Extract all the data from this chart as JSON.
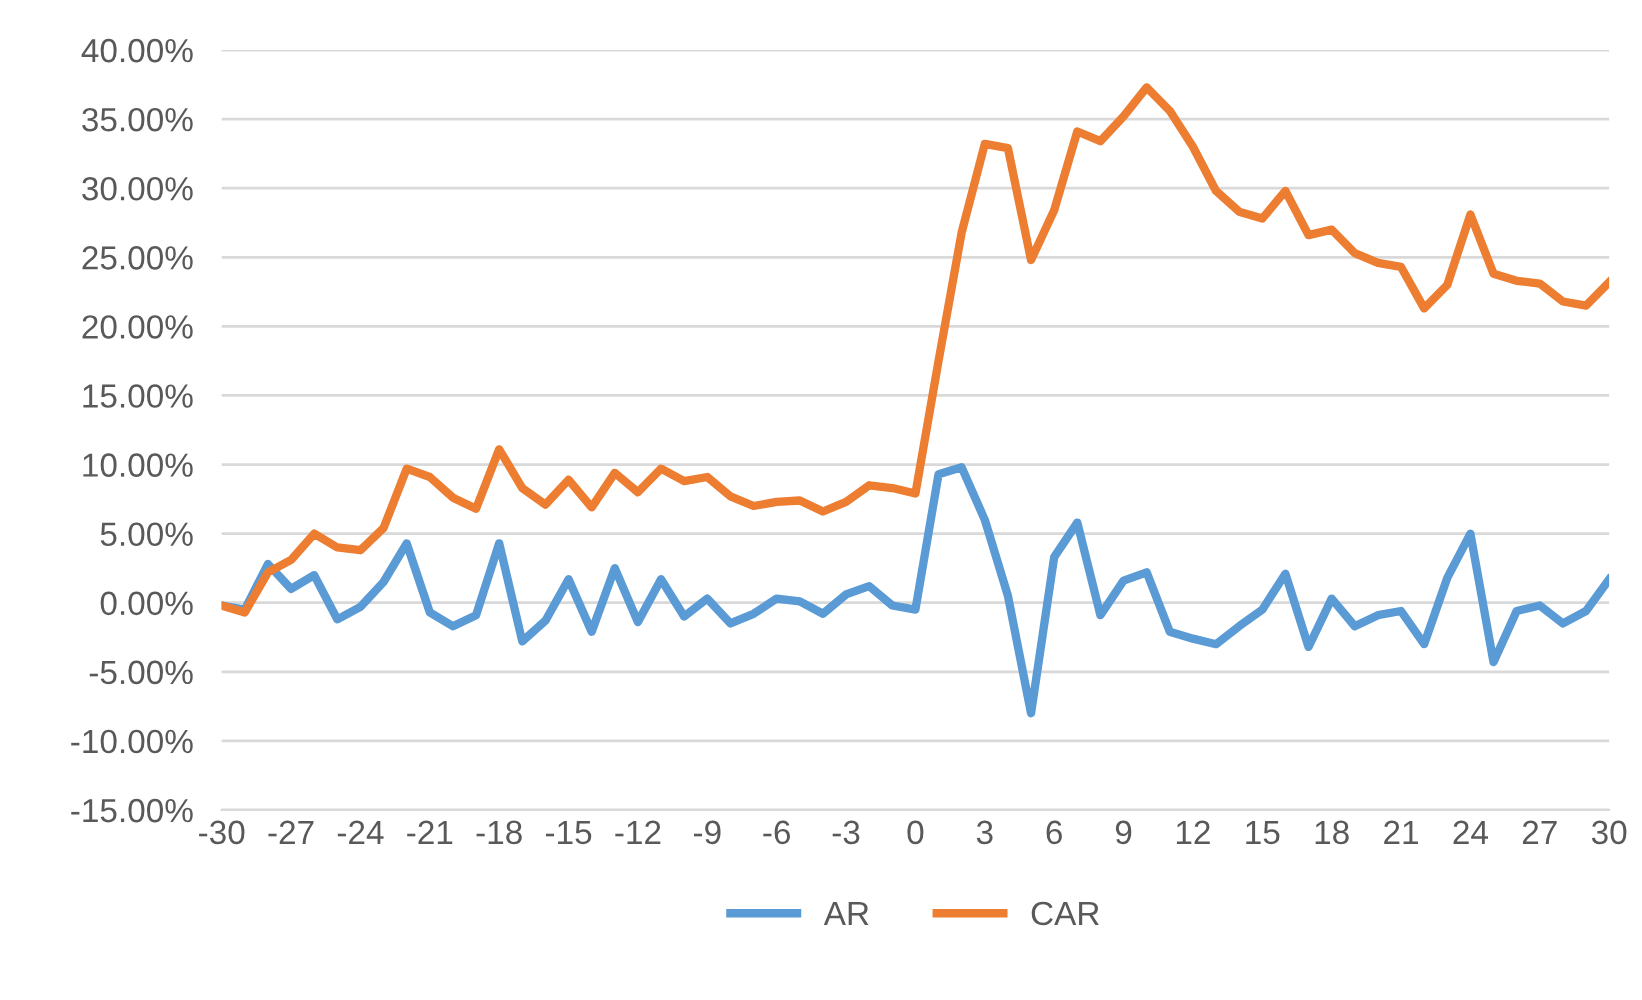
{
  "chart_data": {
    "type": "line",
    "x": [
      -30,
      -29,
      -28,
      -27,
      -26,
      -25,
      -24,
      -23,
      -22,
      -21,
      -20,
      -19,
      -18,
      -17,
      -16,
      -15,
      -14,
      -13,
      -12,
      -11,
      -10,
      -9,
      -8,
      -7,
      -6,
      -5,
      -4,
      -3,
      -2,
      -1,
      0,
      1,
      2,
      3,
      4,
      5,
      6,
      7,
      8,
      9,
      10,
      11,
      12,
      13,
      14,
      15,
      16,
      17,
      18,
      19,
      20,
      21,
      22,
      23,
      24,
      25,
      26,
      27,
      28,
      29,
      30
    ],
    "series": [
      {
        "name": "AR",
        "color": "#5b9bd5",
        "values": [
          -0.2,
          -0.5,
          2.8,
          1.0,
          2.0,
          -1.2,
          -0.3,
          1.5,
          4.3,
          -0.7,
          -1.7,
          -0.9,
          4.3,
          -2.8,
          -1.3,
          1.7,
          -2.1,
          2.5,
          -1.4,
          1.7,
          -1.0,
          0.3,
          -1.5,
          -0.8,
          0.3,
          0.1,
          -0.8,
          0.6,
          1.2,
          -0.2,
          -0.5,
          9.3,
          9.8,
          6.0,
          0.5,
          -8.0,
          3.3,
          5.8,
          -0.9,
          1.6,
          2.2,
          -2.1,
          -2.6,
          -3.0,
          -1.7,
          -0.5,
          2.1,
          -3.2,
          0.3,
          -1.7,
          -0.9,
          -0.6,
          -3.0,
          1.8,
          5.0,
          -4.3,
          -0.6,
          -0.2,
          -1.5,
          -0.6,
          1.7
        ]
      },
      {
        "name": "CAR",
        "color": "#ed7d31",
        "values": [
          -0.2,
          -0.7,
          2.2,
          3.1,
          5.0,
          4.0,
          3.8,
          5.4,
          9.7,
          9.1,
          7.6,
          6.8,
          11.1,
          8.3,
          7.1,
          8.9,
          6.9,
          9.4,
          8.0,
          9.7,
          8.8,
          9.1,
          7.7,
          7.0,
          7.3,
          7.4,
          6.6,
          7.3,
          8.5,
          8.3,
          7.9,
          17.5,
          26.8,
          33.2,
          32.9,
          24.8,
          28.4,
          34.1,
          33.4,
          35.2,
          37.3,
          35.6,
          33.0,
          29.8,
          28.3,
          27.8,
          29.8,
          26.6,
          27.0,
          25.3,
          24.6,
          24.3,
          21.3,
          23.0,
          28.1,
          23.8,
          23.3,
          23.1,
          21.8,
          21.5,
          23.2
        ]
      }
    ],
    "xlim": [
      -30,
      30
    ],
    "xticks": [
      -30,
      -27,
      -24,
      -21,
      -18,
      -15,
      -12,
      -9,
      -6,
      -3,
      0,
      3,
      6,
      9,
      12,
      15,
      18,
      21,
      24,
      27,
      30
    ],
    "ylim": [
      -15,
      40
    ],
    "yticks": [
      {
        "value": -15,
        "label": "-15.00%"
      },
      {
        "value": -10,
        "label": "-10.00%"
      },
      {
        "value": -5,
        "label": "-5.00%"
      },
      {
        "value": 0,
        "label": "0.00%"
      },
      {
        "value": 5,
        "label": "5.00%"
      },
      {
        "value": 10,
        "label": "10.00%"
      },
      {
        "value": 15,
        "label": "15.00%"
      },
      {
        "value": 20,
        "label": "20.00%"
      },
      {
        "value": 25,
        "label": "25.00%"
      },
      {
        "value": 30,
        "label": "30.00%"
      },
      {
        "value": 35,
        "label": "35.00%"
      },
      {
        "value": 40,
        "label": "40.00%"
      }
    ],
    "grid": "y",
    "legend": "bottom",
    "marker": "none",
    "line_style": "solid"
  }
}
